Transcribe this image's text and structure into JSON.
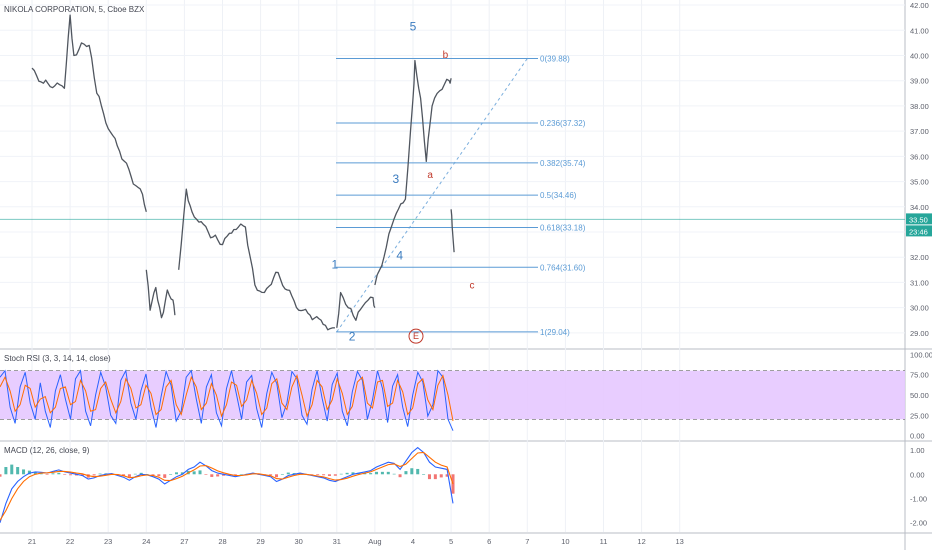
{
  "colors": {
    "bull": "#26a69a",
    "bear": "#ef5350",
    "fib": "#5b9bd5",
    "wave": "#3a7bbf",
    "abc": "#c0392b",
    "rsi_fill": "#e6c8ff",
    "rsi_k": "#2962ff",
    "rsi_d": "#ff6d00",
    "macd_line": "#2962ff",
    "signal_line": "#ff6d00",
    "price_line": "#26a69a"
  },
  "chart_data": [
    {
      "type": "candlestick",
      "title": "NIKOLA CORPORATION, 5, Cboe BZX",
      "x_ticks": [
        "21",
        "22",
        "23",
        "24",
        "27",
        "28",
        "29",
        "30",
        "31",
        "Aug",
        "4",
        "5",
        "6",
        "7",
        "10",
        "11",
        "12",
        "13"
      ],
      "y_ticks": [
        "42.00",
        "41.00",
        "40.00",
        "39.00",
        "38.00",
        "37.00",
        "36.00",
        "35.00",
        "34.00",
        "33.00",
        "32.00",
        "31.00",
        "30.00",
        "29.00"
      ],
      "ylim": [
        28.4,
        42.2
      ],
      "close_segments": [
        {
          "x": [
            0,
            0.3,
            0.6,
            0.85,
            1.0,
            1.1,
            1.3,
            1.5,
            1.7,
            2.0,
            2.3,
            2.6,
            2.9,
            3.0
          ],
          "y": [
            39.5,
            38.9,
            38.8,
            38.7,
            41.6,
            40.0,
            40.5,
            40.4,
            38.5,
            37.1,
            36.2,
            35.2,
            34.5,
            33.8
          ]
        },
        {
          "x": [
            3.0,
            3.1,
            3.25,
            3.4,
            3.55,
            3.7,
            3.75
          ],
          "y": [
            31.5,
            29.9,
            30.8,
            29.6,
            30.7,
            30.3,
            29.7
          ]
        },
        {
          "x": [
            3.85,
            4.05,
            4.2,
            4.5,
            4.75,
            5.0,
            5.3,
            5.6,
            5.85,
            6.1,
            6.4,
            6.7,
            7.0,
            7.3,
            7.7,
            7.95
          ],
          "y": [
            31.5,
            34.7,
            33.8,
            33.3,
            32.8,
            32.5,
            33.1,
            33.2,
            30.9,
            30.6,
            31.4,
            30.7,
            29.9,
            29.7,
            29.3,
            29.2
          ]
        },
        {
          "x": [
            8.0,
            8.1,
            8.3,
            8.5,
            8.75,
            8.95,
            9.0
          ],
          "y": [
            29.2,
            30.6,
            30.0,
            29.5,
            30.2,
            30.4,
            30.0
          ]
        },
        {
          "x": [
            9.0,
            9.3,
            9.5,
            9.8,
            10.0,
            10.05,
            10.2,
            10.35,
            10.5,
            10.7,
            10.95,
            11.0
          ],
          "y": [
            30.9,
            32.4,
            33.5,
            34.3,
            38.3,
            39.8,
            38.3,
            35.8,
            38.0,
            38.6,
            39.0,
            39.1
          ]
        },
        {
          "x": [
            11.0,
            11.03,
            11.08
          ],
          "y": [
            33.9,
            33.2,
            32.2
          ]
        }
      ],
      "current_price": "33.50",
      "current_price_secondary": "23:46",
      "fib_levels": [
        {
          "ratio": "0",
          "value": 39.88,
          "label": "0(39.88)"
        },
        {
          "ratio": "0.236",
          "value": 37.32,
          "label": "0.236(37.32)"
        },
        {
          "ratio": "0.382",
          "value": 35.74,
          "label": "0.382(35.74)"
        },
        {
          "ratio": "0.5",
          "value": 34.46,
          "label": "0.5(34.46)"
        },
        {
          "ratio": "0.618",
          "value": 33.18,
          "label": "0.618(33.18)"
        },
        {
          "ratio": "0.764",
          "value": 31.6,
          "label": "0.764(31.60)"
        },
        {
          "ratio": "1",
          "value": 29.04,
          "label": "1(29.04)"
        }
      ],
      "fib_trendline": {
        "from": [
          8.0,
          29.04
        ],
        "to": [
          13.0,
          39.88
        ]
      },
      "wave_labels": [
        {
          "text": "1",
          "x": 7.95,
          "y": 31.55,
          "kind": "impulse"
        },
        {
          "text": "2",
          "x": 8.4,
          "y": 28.7,
          "kind": "impulse"
        },
        {
          "text": "3",
          "x": 9.55,
          "y": 34.95,
          "kind": "impulse"
        },
        {
          "text": "4",
          "x": 9.65,
          "y": 31.9,
          "kind": "impulse"
        },
        {
          "text": "5",
          "x": 10.0,
          "y": 41.0,
          "kind": "impulse"
        },
        {
          "text": "a",
          "x": 10.45,
          "y": 35.15,
          "kind": "corrective"
        },
        {
          "text": "b",
          "x": 10.85,
          "y": 39.9,
          "kind": "corrective"
        },
        {
          "text": "c",
          "x": 11.55,
          "y": 30.75,
          "kind": "corrective"
        },
        {
          "text": "E",
          "x": 10.0,
          "y": 28.75,
          "kind": "circled"
        }
      ]
    },
    {
      "type": "line",
      "title": "Stoch RSI (3, 3, 14, 14, close)",
      "y_ticks": [
        "100.00",
        "75.00",
        "50.00",
        "25.00",
        "0.00"
      ],
      "ylim": [
        -3,
        103
      ],
      "band": [
        20,
        80
      ],
      "series": [
        {
          "role": "k",
          "values": [
            72,
            80,
            35,
            15,
            60,
            78,
            40,
            20,
            65,
            30,
            10,
            55,
            75,
            45,
            20,
            70,
            80,
            30,
            12,
            50,
            78,
            60,
            25,
            15,
            68,
            80,
            40,
            20,
            55,
            76,
            35,
            10,
            48,
            79,
            62,
            18,
            30,
            72,
            80,
            45,
            15,
            60,
            75,
            28,
            12,
            58,
            80,
            50,
            20,
            66,
            74,
            33,
            10,
            52,
            78,
            64,
            22,
            40,
            79,
            70,
            25,
            14,
            57,
            80,
            46,
            18,
            63,
            77,
            30,
            12,
            54,
            79,
            68,
            20,
            44,
            80,
            58,
            16,
            61,
            75,
            35,
            11,
            50,
            78,
            66,
            24,
            38,
            80,
            72,
            20,
            6
          ]
        },
        {
          "role": "d",
          "values": [
            60,
            72,
            55,
            30,
            38,
            62,
            58,
            35,
            45,
            48,
            28,
            35,
            58,
            60,
            38,
            42,
            68,
            55,
            30,
            32,
            58,
            66,
            45,
            28,
            42,
            70,
            58,
            34,
            38,
            62,
            52,
            26,
            32,
            60,
            68,
            38,
            26,
            50,
            72,
            60,
            32,
            40,
            64,
            50,
            24,
            38,
            66,
            62,
            36,
            44,
            68,
            52,
            26,
            34,
            64,
            70,
            40,
            32,
            60,
            74,
            50,
            24,
            38,
            68,
            60,
            32,
            44,
            70,
            52,
            26,
            36,
            66,
            72,
            40,
            34,
            66,
            68,
            36,
            40,
            68,
            54,
            26,
            34,
            64,
            70,
            44,
            32,
            62,
            74,
            50,
            18
          ]
        }
      ]
    },
    {
      "type": "line",
      "title": "MACD (12, 26, close, 9)",
      "y_ticks": [
        "1.00",
        "0.00",
        "-1.00",
        "-2.00"
      ],
      "ylim": [
        -2.3,
        1.25
      ],
      "macd": [
        -2.0,
        -1.2,
        -0.6,
        -0.3,
        -0.1,
        0.05,
        0.1,
        0.08,
        0.05,
        0.12,
        0.18,
        0.1,
        0.05,
        0.0,
        -0.05,
        -0.2,
        -0.15,
        -0.05,
        0.0,
        0.03,
        -0.05,
        -0.12,
        -0.25,
        -0.1,
        0.0,
        -0.02,
        -0.1,
        -0.2,
        -0.4,
        -0.25,
        -0.1,
        0.0,
        0.2,
        0.3,
        0.5,
        0.35,
        0.15,
        0.05,
        0.0,
        -0.05,
        -0.1,
        -0.05,
        0.0,
        0.05,
        0.0,
        -0.05,
        -0.1,
        -0.3,
        -0.2,
        -0.05,
        0.0,
        0.05,
        0.0,
        -0.05,
        -0.1,
        -0.15,
        -0.25,
        -0.3,
        -0.2,
        -0.1,
        0.0,
        0.05,
        0.1,
        0.15,
        0.3,
        0.4,
        0.5,
        0.45,
        0.2,
        0.55,
        0.9,
        1.1,
        0.9,
        0.5,
        0.3,
        0.25,
        0.2,
        -1.2
      ],
      "signal": [
        -1.9,
        -1.5,
        -1.0,
        -0.6,
        -0.3,
        -0.1,
        0.0,
        0.05,
        0.06,
        0.08,
        0.12,
        0.12,
        0.09,
        0.05,
        0.02,
        -0.06,
        -0.1,
        -0.08,
        -0.04,
        0.0,
        -0.01,
        -0.06,
        -0.14,
        -0.12,
        -0.06,
        -0.03,
        -0.05,
        -0.12,
        -0.25,
        -0.26,
        -0.18,
        -0.08,
        0.06,
        0.18,
        0.34,
        0.36,
        0.26,
        0.14,
        0.06,
        0.0,
        -0.05,
        -0.05,
        -0.02,
        0.02,
        0.02,
        -0.02,
        -0.06,
        -0.18,
        -0.2,
        -0.12,
        -0.05,
        0.0,
        0.0,
        -0.03,
        -0.07,
        -0.11,
        -0.18,
        -0.24,
        -0.22,
        -0.16,
        -0.08,
        -0.01,
        0.05,
        0.1,
        0.2,
        0.3,
        0.4,
        0.43,
        0.32,
        0.42,
        0.65,
        0.88,
        0.9,
        0.7,
        0.5,
        0.38,
        0.3,
        -0.4
      ]
    }
  ]
}
